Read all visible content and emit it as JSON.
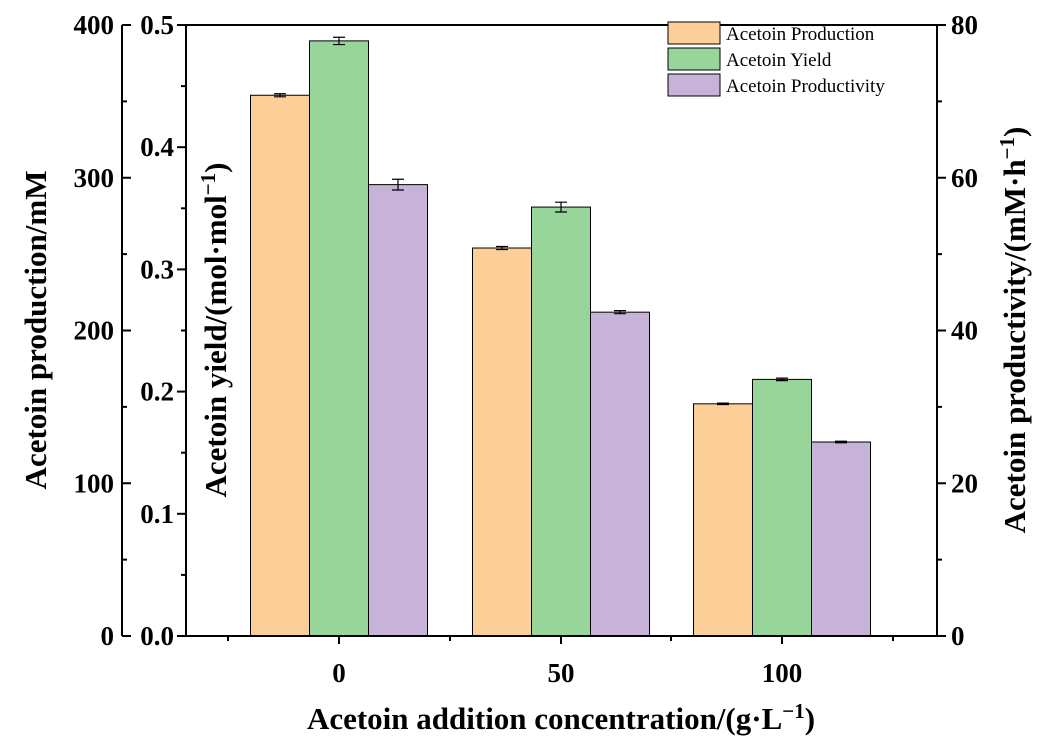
{
  "chart_data": {
    "type": "bar",
    "categories": [
      "0",
      "50",
      "100"
    ],
    "xlabel": "Acetoin addition concentration/(g·L",
    "xlabel_sup": "−1",
    "xlabel_tail": ")",
    "axes": {
      "left_outer": {
        "label": "Acetoin production/mM",
        "ylim": [
          0,
          400
        ],
        "ticks": [
          "0",
          "100",
          "200",
          "300",
          "400"
        ]
      },
      "left_inner": {
        "label": "Acetoin yield/(mol·mol",
        "label_sup": "−1",
        "label_tail": ")",
        "ylim": [
          0,
          0.5
        ],
        "ticks": [
          "0.0",
          "0.1",
          "0.2",
          "0.3",
          "0.4",
          "0.5"
        ]
      },
      "right": {
        "label": "Acetoin productivity/(mM·h",
        "label_sup": "−1",
        "label_tail": ")",
        "ylim": [
          0,
          80
        ],
        "ticks": [
          "0",
          "20",
          "40",
          "60",
          "80"
        ]
      }
    },
    "series": [
      {
        "name": "Acetoin Production",
        "axis": "left_outer",
        "color": "#FDCF98",
        "values": [
          354,
          254,
          152
        ],
        "errors": [
          1,
          1,
          0.5
        ]
      },
      {
        "name": "Acetoin Yield",
        "axis": "left_inner",
        "color": "#98D59A",
        "values": [
          0.487,
          0.351,
          0.21
        ],
        "errors": [
          0.003,
          0.004,
          0.001
        ]
      },
      {
        "name": "Acetoin Productivity",
        "axis": "right",
        "color": "#C6B3D7",
        "values": [
          59.1,
          42.4,
          25.4
        ],
        "errors": [
          0.7,
          0.2,
          0.1
        ]
      }
    ],
    "legend_position": "top-right",
    "grid": false
  }
}
